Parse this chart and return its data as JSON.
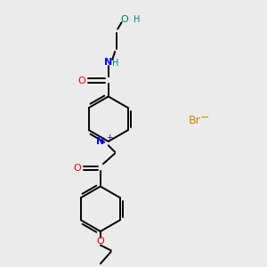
{
  "background_color": "#ebebeb",
  "bond_color": "#000000",
  "oxygen_color": "#ff0000",
  "nitrogen_color": "#0000ff",
  "bromine_color": "#cc8800",
  "hydroxyl_color": "#008080",
  "line_width": 1.4,
  "fig_width": 3.0,
  "fig_height": 3.0,
  "dpi": 100,
  "xlim": [
    0,
    10
  ],
  "ylim": [
    0,
    10
  ]
}
